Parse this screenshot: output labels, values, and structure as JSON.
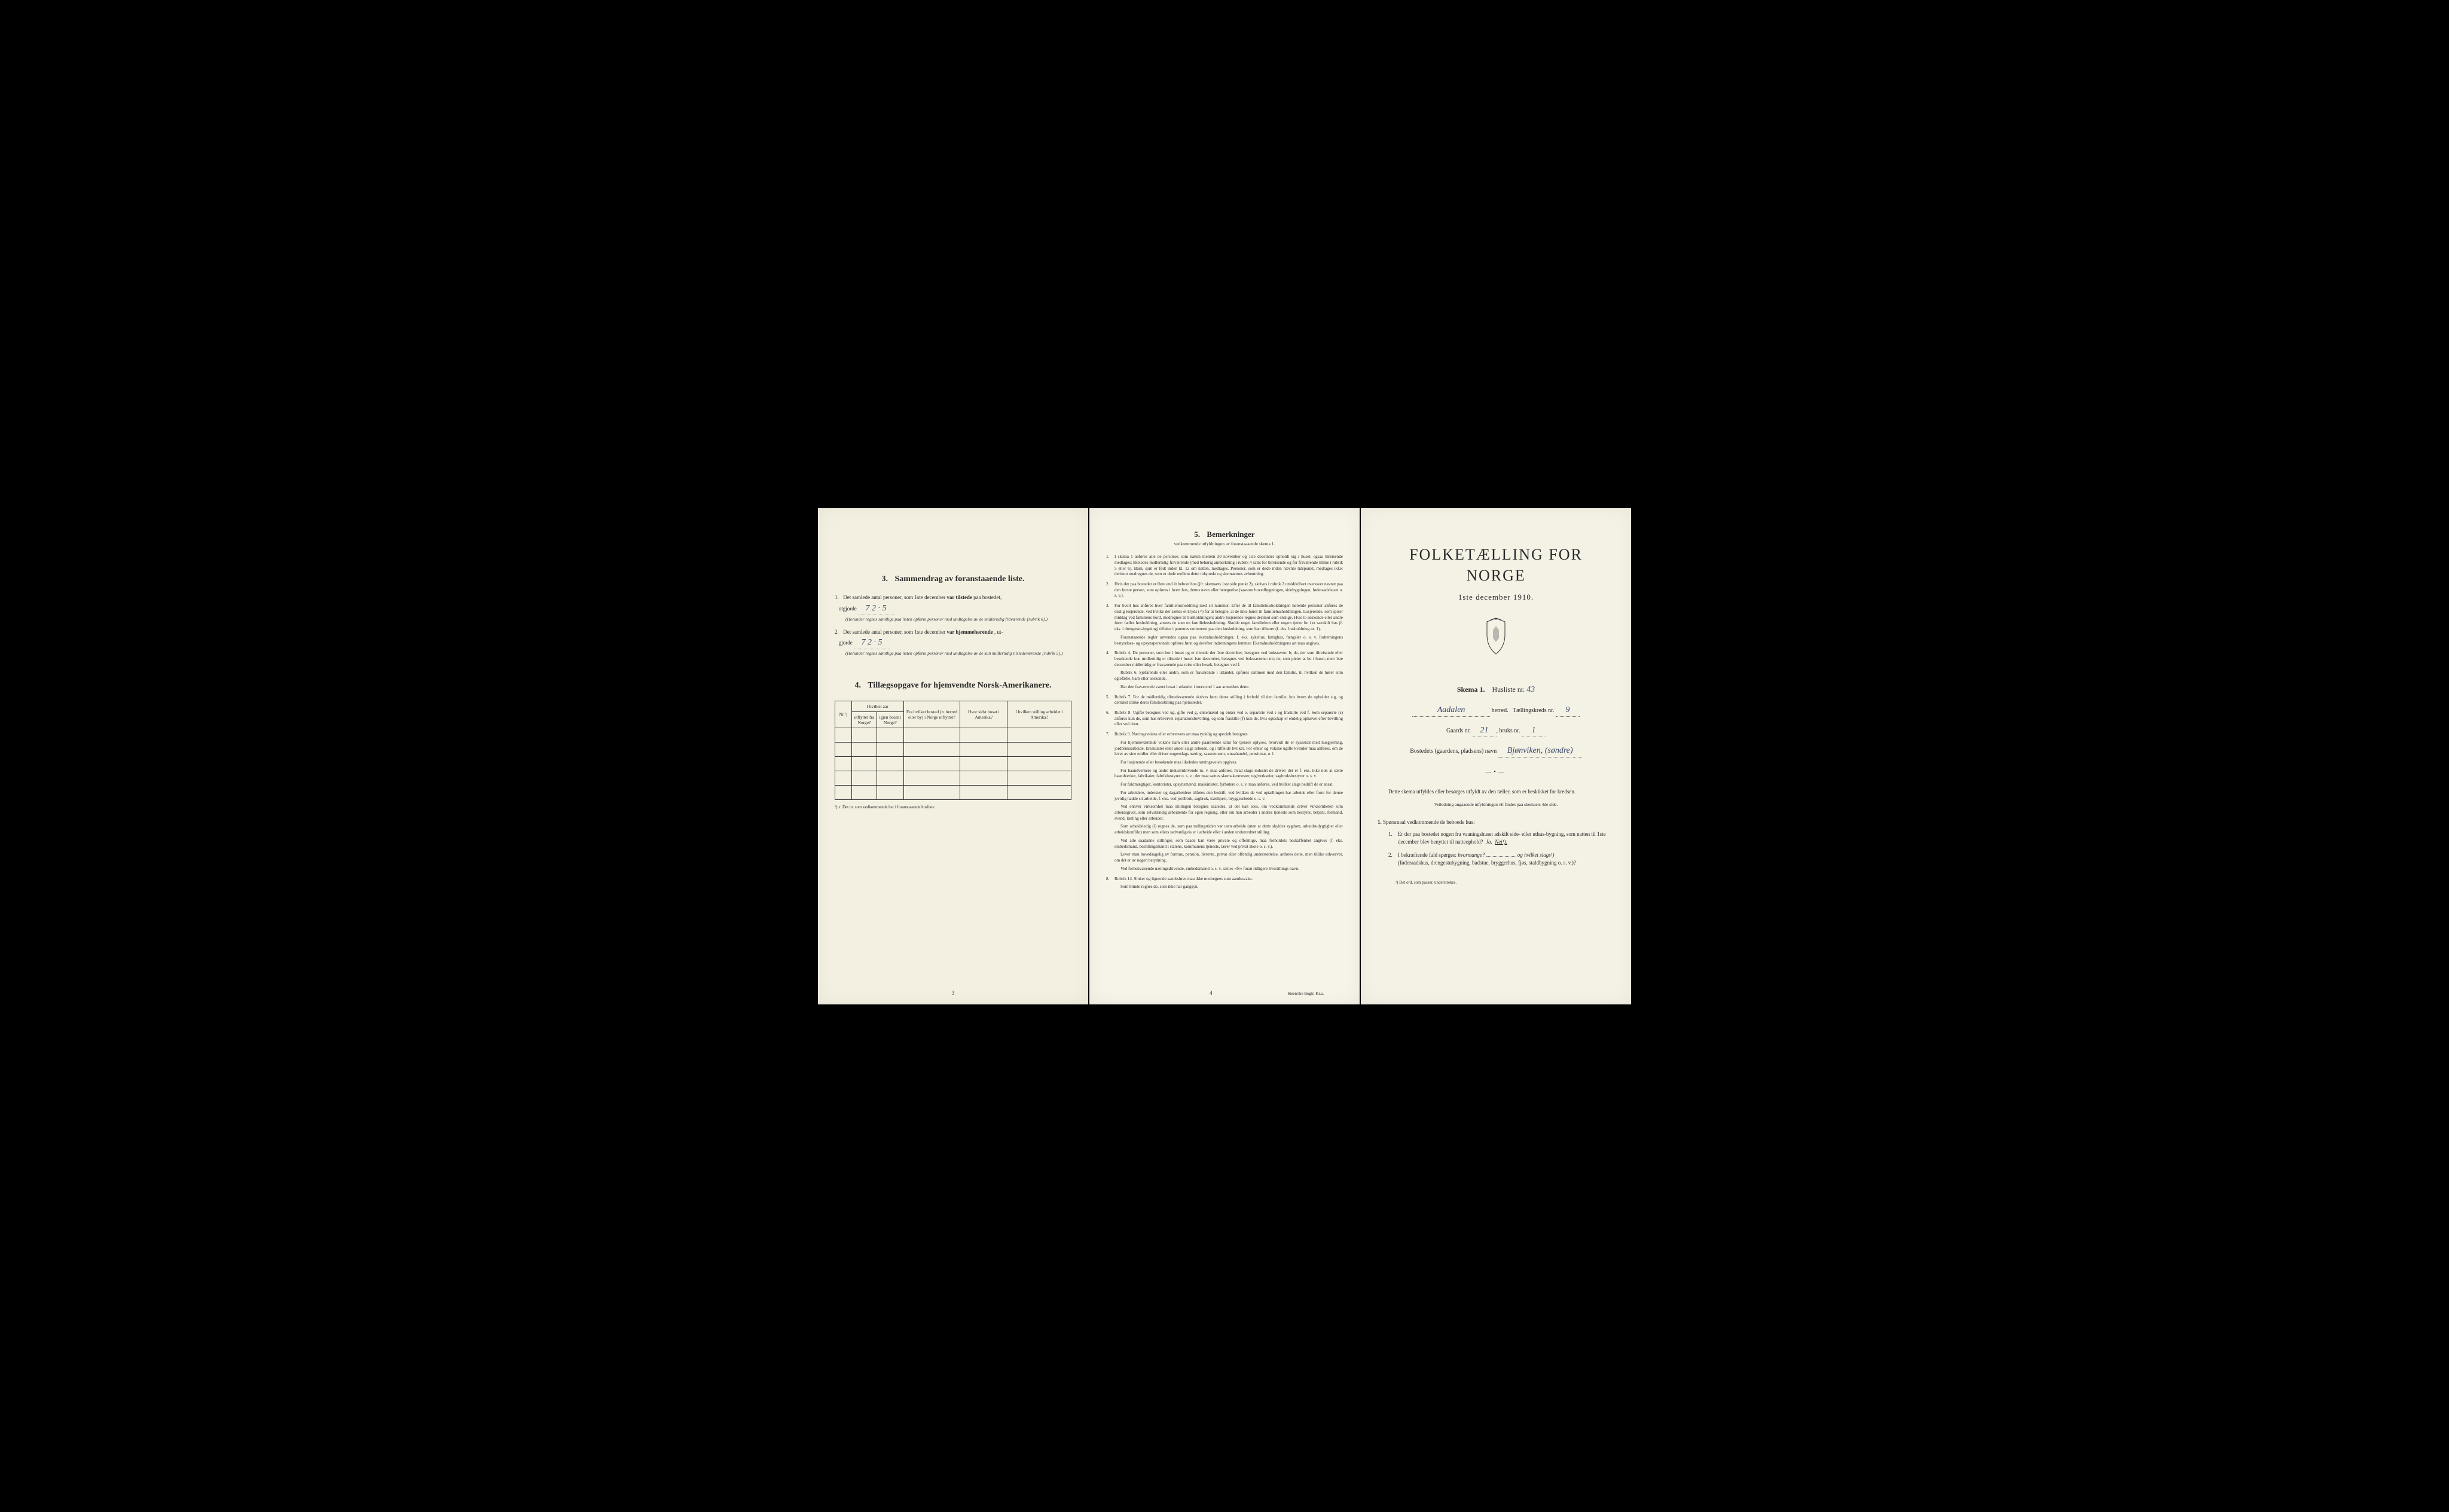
{
  "page1": {
    "section3": {
      "num": "3.",
      "title": "Sammendrag av foranstaaende liste.",
      "q1": {
        "num": "1.",
        "text_a": "Det samlede antal personer, som 1ste december",
        "bold": "var tilstede",
        "text_b": "paa bostedet,",
        "utgjorde": "utgjorde",
        "value": "7   2 · 5",
        "note": "(Herunder regnes samtlige paa listen opførte personer med undtagelse av de midlertidig fraværende [rubrik 6].)"
      },
      "q2": {
        "num": "2.",
        "text_a": "Det samlede antal personer, som 1ste december",
        "bold": "var hjemmehørende",
        "text_b": ", ut-",
        "utgjorde": "gjorde",
        "value": "7     2 · 5",
        "note": "(Herunder regnes samtlige paa listen opførte personer med undtagelse av de kun midlertidig tilstedeværende [rubrik 5].)"
      }
    },
    "section4": {
      "num": "4.",
      "title": "Tillægsopgave for hjemvendte Norsk-Amerikanere.",
      "headers": {
        "c0": "Nr.¹)",
        "c1": "I hvilket aar utflyttet fra Norge?",
        "c2": "I hvilket aar igjen bosat i Norge?",
        "c3": "Fra hvilket bosted (ɔ: herred eller by) i Norge utflyttet?",
        "c4": "Hvor sidst bosat i Amerika?",
        "c5": "I hvilken stilling arbeidet i Amerika?"
      },
      "footnote": "¹) ɔ: Det nr. som vedkommende har i foranstaaende husliste."
    },
    "pagenum": "3"
  },
  "page2": {
    "section5": {
      "num": "5.",
      "title": "Bemerkninger",
      "subtitle": "vedkommende utfyldningen av foranstaaaende skema 1."
    },
    "items": [
      {
        "n": "1.",
        "text": "I skema 1 anføres alle de personer, som natten mellem 30 november og 1ste december opholdt sig i huset; ogsaa tilreisende medtages; likeledes midlertidig fraværende (med behørig anmerkning i rubrik 4 samt for tilreisende og for fraværende tillike i rubrik 5 eller 6). Barn, som er født inden kl. 12 om natten, medtages. Personer, som er døde inden nævnte tidspunkt, medtages ikke; derimot medregnes de, som er døde mellem dette tidspunkt og skemaernes avhentning."
      },
      {
        "n": "2.",
        "text": "Hvis der paa bostedet er flere end ét beboet hus (jfr. skemaets 1ste side punkt 2), skrives i rubrik 2 umiddelbart ovenover navnet paa den første person, som opføres i hvert hus, dettes navn eller betegnelse (saasom hovedbygningen, sidebygningen, føderaadshuset o. s. v.)."
      },
      {
        "n": "3.",
        "text": "For hvert hus anføres hver familiehusholdning med sit nummer. Efter de til familiehusholdningen hørende personer anføres de enslig losjerende, ved hvilke der sættes et kryds (×) for at betegne, at de ikke hører til familiehusholdningen. Losjerende, som spiser middag ved familiens bord, medregnes til husholdningen; andre losjerende regnes derimot som enslige. Hvis to søskende eller andre fører fælles husholdning, ansees de som en familiehusholdning. Skulde noget familielem eller nogen tjener bo i et særskilt hus (f. eks. i drengestu-bygning) tilføies i parentes nummeret paa den husholdning, som han tilhører (f. eks. husholdning nr. 1).",
        "extra": [
          "Foranstaaende regler anvendes ogsaa paa ekstrahusholdninger, f. eks. sykehus, fattighus, fængsler o. s. v. Indretningens bestyrelses- og opsynspersonale opføres først og derefter indretningens lemmer. Ekstrahusholdningens art maa angives."
        ]
      },
      {
        "n": "4.",
        "text": "Rubrik 4. De personer, som bor i huset og er tilstede der 1ste december, betegnes ved bokstaven: b; de, der som tilreisende eller besøkende kun midlertidig er tilstede i huset 1ste december, betegnes ved bokstaverne: mt; de, som pleier at bo i huset, men 1ste december midlertidig er fraværende paa reise eller besøk, betegnes ved f.",
        "extra": [
          "Rubrik 6. Sjøfarende eller andre, som er fraværende i utlandet, opføres sammen med den familie, til hvilken de hører som egtefælle, barn eller søskende.",
          "Har den fraværende været bosat i utlandet i mere end 1 aar anmerkes dette."
        ]
      },
      {
        "n": "5.",
        "text": "Rubrik 7. For de midlertidig tilstedeværende skrives først deres stilling i forhold til den familie, hos hvem de opholder sig, og dernæst tillike deres familiestilling paa hjemstedet."
      },
      {
        "n": "6.",
        "text": "Rubrik 8. Ugifte betegnes ved ug, gifte ved g, enkemænd og enker ved e, separerte ved s og fraskilte ved f. Som separerte (s) anføres kun de, som har erhvervet separationsbevilling, og som fraskilte (f) kun de, hvis egteskap er endelig ophævet efter bevilling eller ved dom."
      },
      {
        "n": "7.",
        "text": "Rubrik 9. Næringsveiens eller erhvervets art maa tydelig og specielt betegnes.",
        "extra": [
          "For hjemmeværende voksne barn eller andre paarørende samt for tjenere oplyses, hvorvidt de er sysselsat med husgjerning, jordbruksarbeide, kreaturstel eller andet slags arbeide, og i tilfælde hvilket. For enker og voksne ugifte kvinder maa anføres, om de lever av sine midler eller driver nogenslags næring, saasom søm, smaahandel, pensionat, o. l.",
          "For losjerende eller besøkende maa likeledes næringsveien opgives.",
          "For haandverkere og andre industridrivende m. v. maa anføres, hvad slags industri de driver; det er f. eks. ikke nok at sætte haandverker, fabrikaier, fabrikbestyrer o. s. v.; der maa sættes skomakermester, teglverkseier, sagbruksbestyrer o. s. v.",
          "For fuldmægtiger, kontorister, opsynsmænd, maskinister, fyrbøtere o. s. v. maa anføres, ved hvilket slags bedrift de er ansat.",
          "For arbeidere, inderster og dagarbeidere tilføies den bedrift, ved hvilken de ved optællingen har arbeide eller forut for denne jevnlig hadde sit arbeide, f. eks. ved jordbruk, sagbruk, træsliperi, bryggearbeide o. s. v.",
          "Ved enhver virksomhet maa stillingen betegnes saaledes, at det kan sees, om vedkommende driver virksomheten som arbeidsgiver, som selvstændig arbeidende for egen regning, eller om han arbeider i andres tjeneste som bestyrer, betjent, formand, svend, lærling eller arbeider.",
          "Som arbeidsledig (l) regnes de, som paa tællingstiden var uten arbeide (uten at dette skyldes sygdom, arbeidsudygtighet eller arbeidskonflikt) men som ellers sedvanligvis er i arbeide eller i anden underordnet stilling.",
          "Ved alle saadanne stillinger, som baade kan være private og offentlige, maa forholdets beskaffenhet angives (f. eks. embedsmand, bestillingsmand i statens, kommunens tjeneste, lærer ved privat skole o. s. v.).",
          "Lever man hovedsagelig av formue, pension, livrente, privat eller offentlig understøttelse, anføres dette, men tillike erhvervet, om det er av nogen betydning.",
          "Ved forhenværende næringsdrivende, embedsmænd o. s. v. sættes «fv» foran tidligere livsstillings navn."
        ]
      },
      {
        "n": "8.",
        "text": "Rubrik 14. Sinker og lignende aandssløve maa ikke medregnes som aandssvake.",
        "extra": [
          "Som blinde regnes de, som ikke har gangsyn."
        ]
      }
    ],
    "pagenum": "4",
    "printer": "Steen'ske Bogtr. Kr.a."
  },
  "page3": {
    "title": "FOLKETÆLLING FOR NORGE",
    "date": "1ste december 1910.",
    "skema": {
      "label_a": "Skema 1.",
      "label_b": "Husliste nr.",
      "value": "43"
    },
    "herred": {
      "name": "Aadalen",
      "label": "herred.",
      "kreds_label": "Tællingskreds nr.",
      "kreds_value": "9"
    },
    "gaard": {
      "gaard_label": "Gaards nr.",
      "gaard_value": "21",
      "bruk_label": "bruks nr.",
      "bruk_value": "1"
    },
    "bosted": {
      "label": "Bostedets (gaardens, pladsens) navn",
      "value": "Bjønviken, (søndre)"
    },
    "intro": "Dette skema utfyldes eller besørges utfyldt av den tæller, som er beskikket for kredsen.",
    "intro_note": "Veiledning angaaende utfyldningen vil findes paa skemaets 4de side.",
    "q_title": "Spørsmaal vedkommende de beboede hus:",
    "q_num": "1.",
    "questions": [
      {
        "n": "1.",
        "text": "Er der paa bostedet nogen fra vaaningshuset adskilt side- eller uthus-bygning, som natten til 1ste december blev benyttet til natteophold?",
        "ja": "Ja.",
        "nei": "Nei¹)."
      },
      {
        "n": "2.",
        "text_a": "I bekræftende fald spørges:",
        "text_b": "hvormange?",
        "text_c": "og hvilket slags¹)",
        "text_d": "(føderaadshus, drengestubygning, badstue, bryggerhus, fjøs, staldbygning o. s. v.)?"
      }
    ],
    "footnote": "¹) Det ord, som passer, understrekes."
  }
}
